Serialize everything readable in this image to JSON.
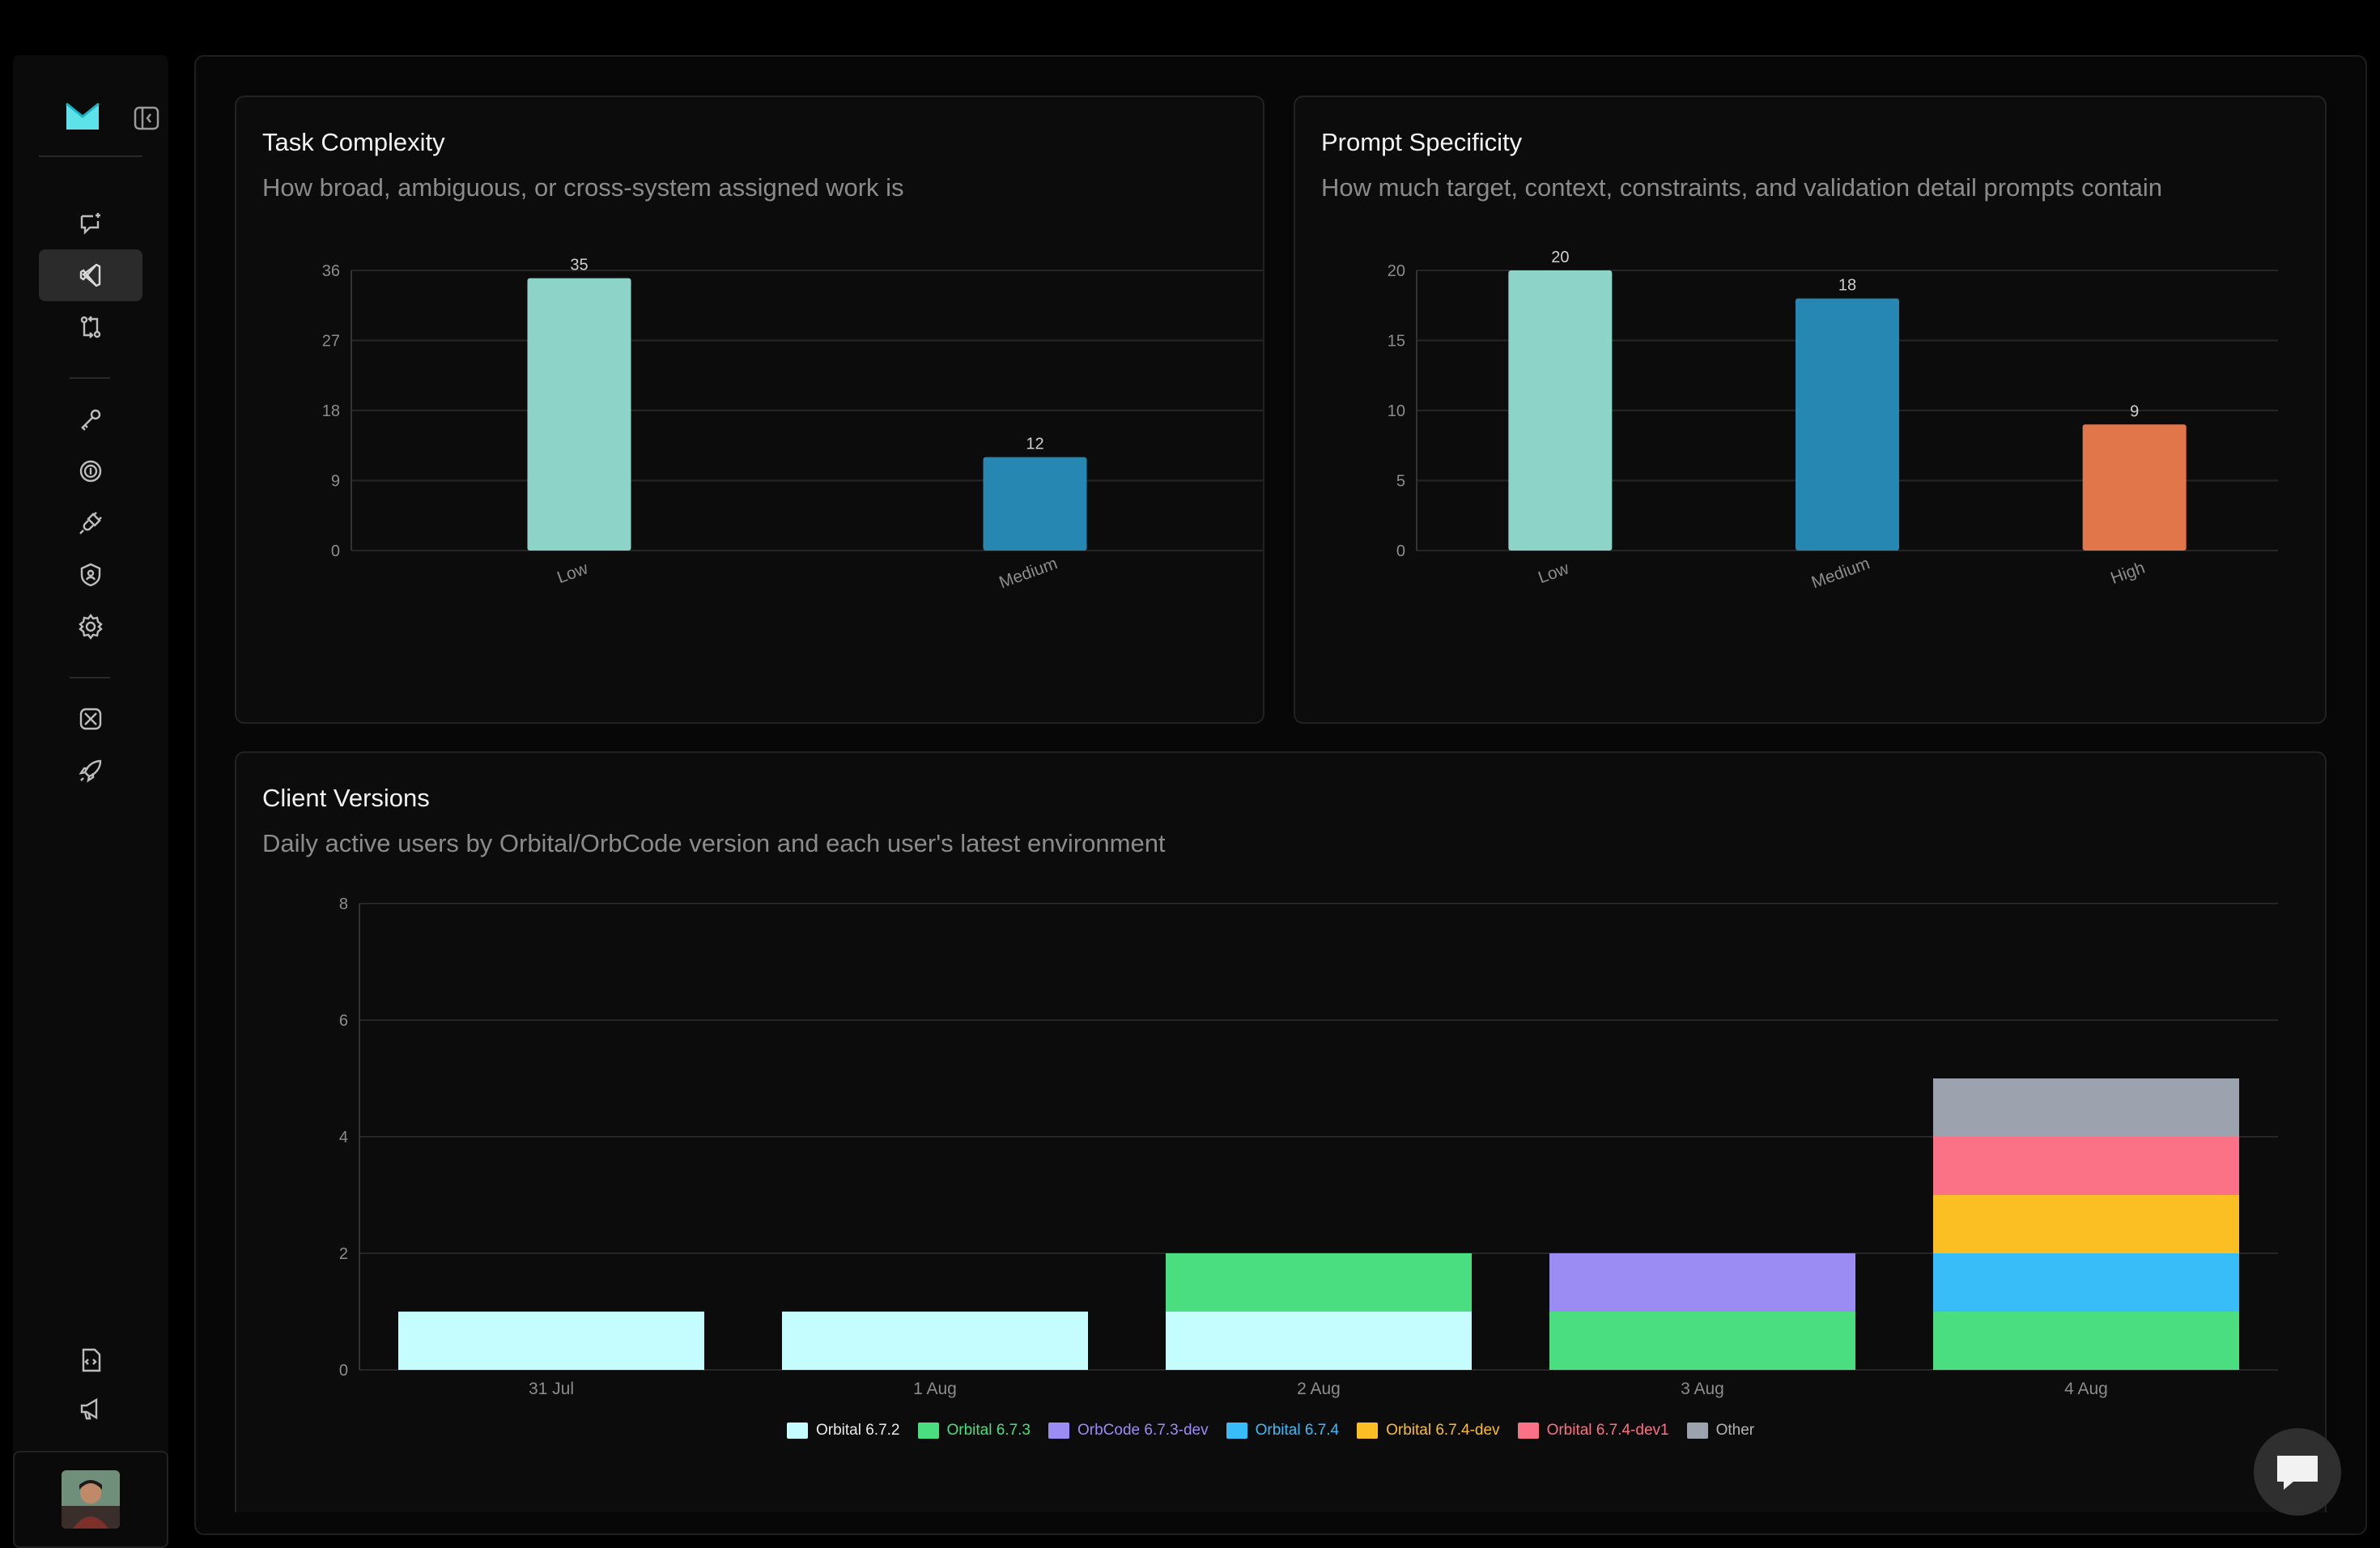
{
  "sidebar": {
    "items": [
      {
        "icon": "chat-sparkle-icon"
      },
      {
        "icon": "vscode-icon",
        "active": true
      },
      {
        "icon": "pull-request-icon"
      },
      {
        "icon": "key-icon"
      },
      {
        "icon": "billing-coin-icon"
      },
      {
        "icon": "plug-icon"
      },
      {
        "icon": "shield-icon"
      },
      {
        "icon": "gear-icon"
      },
      {
        "icon": "integrations-icon"
      },
      {
        "icon": "rocket-icon"
      },
      {
        "icon": "docs-icon"
      },
      {
        "icon": "announcement-icon"
      }
    ]
  },
  "colors": {
    "teal": "#8ed3c7",
    "blue": "#2687b2",
    "orange": "#e0764a"
  },
  "task_complexity": {
    "title": "Task Complexity",
    "subtitle": "How broad, ambiguous, or cross-system assigned work is"
  },
  "prompt_specificity": {
    "title": "Prompt Specificity",
    "subtitle": "How much target, context, constraints, and validation detail prompts contain"
  },
  "client_versions": {
    "title": "Client Versions",
    "subtitle": "Daily active users by Orbital/OrbCode version and each user's latest environment"
  },
  "chart_data": [
    {
      "type": "bar",
      "categories": [
        "Low",
        "Medium"
      ],
      "values": [
        35,
        12
      ],
      "yticks": [
        0,
        9,
        18,
        27,
        36
      ],
      "ylim": [
        0,
        36
      ],
      "colors": [
        "#8ed3c7",
        "#2687b2"
      ]
    },
    {
      "type": "bar",
      "categories": [
        "Low",
        "Medium",
        "High"
      ],
      "values": [
        20,
        18,
        9
      ],
      "yticks": [
        0,
        5,
        10,
        15,
        20
      ],
      "ylim": [
        0,
        20
      ],
      "colors": [
        "#8ed3c7",
        "#2687b2",
        "#e0764a"
      ]
    },
    {
      "type": "bar",
      "stacked": true,
      "categories": [
        "31 Jul",
        "1 Aug",
        "2 Aug",
        "3 Aug",
        "4 Aug"
      ],
      "yticks": [
        0,
        2,
        4,
        6,
        8
      ],
      "ylim": [
        0,
        8
      ],
      "series": [
        {
          "name": "Orbital 6.7.2",
          "color": "#c5fcfd",
          "values": [
            1,
            1,
            1,
            0,
            0
          ]
        },
        {
          "name": "Orbital 6.7.3",
          "color": "#4ade80",
          "values": [
            0,
            0,
            1,
            1,
            1
          ]
        },
        {
          "name": "OrbCode 6.7.3-dev",
          "color": "#9b8cf4",
          "values": [
            0,
            0,
            0,
            1,
            0
          ]
        },
        {
          "name": "Orbital 6.7.4",
          "color": "#38bdf8",
          "values": [
            0,
            0,
            0,
            0,
            1
          ]
        },
        {
          "name": "Orbital 6.7.4-dev",
          "color": "#fbbf24",
          "values": [
            0,
            0,
            0,
            0,
            1
          ]
        },
        {
          "name": "Orbital 6.7.4-dev1",
          "color": "#fb7185",
          "values": [
            0,
            0,
            0,
            0,
            1
          ]
        },
        {
          "name": "Other",
          "color": "#9ca3af",
          "values": [
            0,
            0,
            0,
            0,
            1
          ]
        }
      ]
    }
  ]
}
